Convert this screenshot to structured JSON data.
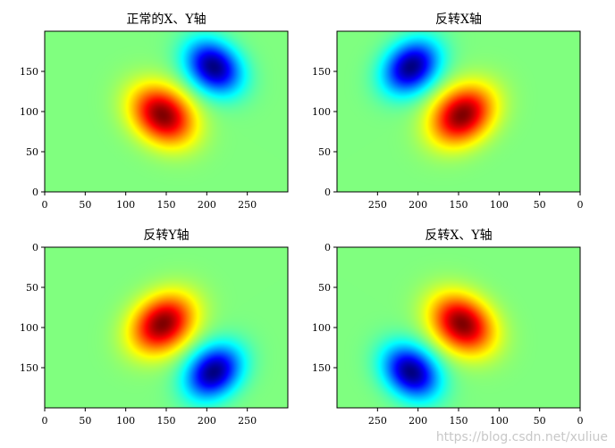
{
  "chart_data": [
    {
      "type": "heatmap",
      "title": "正常的X、Y轴",
      "colormap": "jet",
      "invert_x": false,
      "invert_y": false,
      "xlim": [
        0,
        300
      ],
      "ylim": [
        0,
        200
      ],
      "xticks": [
        0,
        50,
        100,
        150,
        200,
        250
      ],
      "yticks": [
        0,
        50,
        100,
        150
      ],
      "hot_spot": [
        145,
        95
      ],
      "cold_spot": [
        208,
        155
      ]
    },
    {
      "type": "heatmap",
      "title": "反转X轴",
      "colormap": "jet",
      "invert_x": true,
      "invert_y": false,
      "xlim": [
        300,
        0
      ],
      "ylim": [
        0,
        200
      ],
      "xticks": [
        250,
        200,
        150,
        100,
        50,
        0
      ],
      "yticks": [
        0,
        50,
        100,
        150
      ],
      "hot_spot": [
        145,
        95
      ],
      "cold_spot": [
        208,
        155
      ]
    },
    {
      "type": "heatmap",
      "title": "反转Y轴",
      "colormap": "jet",
      "invert_x": false,
      "invert_y": true,
      "xlim": [
        0,
        300
      ],
      "ylim": [
        200,
        0
      ],
      "xticks": [
        0,
        50,
        100,
        150,
        200,
        250
      ],
      "yticks": [
        0,
        50,
        100,
        150
      ],
      "hot_spot": [
        145,
        95
      ],
      "cold_spot": [
        208,
        155
      ]
    },
    {
      "type": "heatmap",
      "title": "反转X、Y轴",
      "colormap": "jet",
      "invert_x": true,
      "invert_y": true,
      "xlim": [
        300,
        0
      ],
      "ylim": [
        200,
        0
      ],
      "xticks": [
        250,
        200,
        150,
        100,
        50,
        0
      ],
      "yticks": [
        0,
        50,
        100,
        150
      ],
      "hot_spot": [
        145,
        95
      ],
      "cold_spot": [
        208,
        155
      ]
    }
  ],
  "watermark": "https://blog.csdn.net/xuliue"
}
